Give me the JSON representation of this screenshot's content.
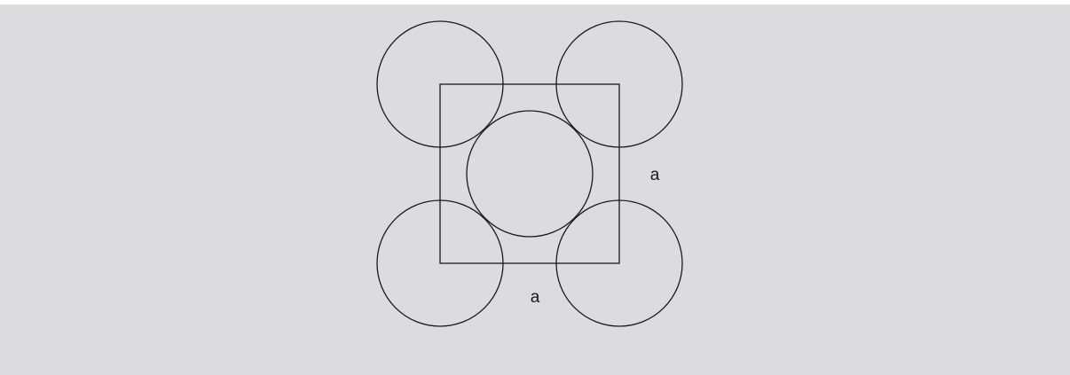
{
  "diagram": {
    "labels": {
      "side_right": "a",
      "side_bottom": "a"
    },
    "colors": {
      "background": "#dcdcde",
      "stroke": "#1a1a1a"
    }
  }
}
